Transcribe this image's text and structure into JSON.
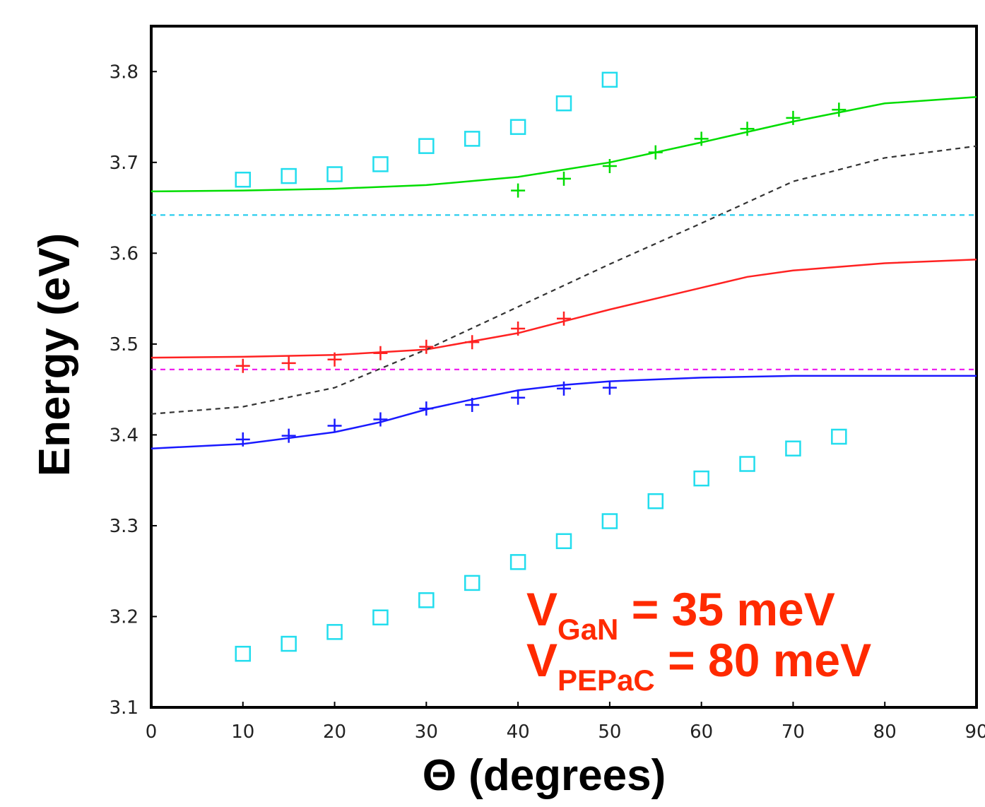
{
  "chart_data": {
    "type": "line",
    "xlabel": "Θ (degrees)",
    "ylabel": "Energy (eV)",
    "xlim": [
      0,
      90
    ],
    "ylim": [
      3.1,
      3.85
    ],
    "x_ticks": [
      "0",
      "10",
      "20",
      "30",
      "40",
      "50",
      "60",
      "70",
      "80",
      "90"
    ],
    "y_ticks": [
      "3.1",
      "3.2",
      "3.3",
      "3.4",
      "3.5",
      "3.6",
      "3.7",
      "3.8"
    ],
    "grid": false,
    "annotations": [
      {
        "main": "V",
        "sub": "GaN",
        "rest": " = 35 meV"
      },
      {
        "main": "V",
        "sub": "PEPaC",
        "rest": " = 80 meV"
      }
    ],
    "series": [
      {
        "color": "#00dd00",
        "style": "solid",
        "points": [
          [
            0,
            3.668
          ],
          [
            10,
            3.669
          ],
          [
            20,
            3.671
          ],
          [
            30,
            3.675
          ],
          [
            40,
            3.684
          ],
          [
            45,
            3.692
          ],
          [
            50,
            3.7
          ],
          [
            60,
            3.722
          ],
          [
            70,
            3.745
          ],
          [
            80,
            3.765
          ],
          [
            90,
            3.772
          ]
        ]
      },
      {
        "color": "#ff2222",
        "style": "solid",
        "points": [
          [
            0,
            3.485
          ],
          [
            10,
            3.486
          ],
          [
            20,
            3.488
          ],
          [
            30,
            3.494
          ],
          [
            40,
            3.512
          ],
          [
            45,
            3.525
          ],
          [
            50,
            3.538
          ],
          [
            60,
            3.562
          ],
          [
            65,
            3.574
          ],
          [
            70,
            3.581
          ],
          [
            80,
            3.589
          ],
          [
            90,
            3.593
          ]
        ]
      },
      {
        "color": "#1a1aff",
        "style": "solid",
        "points": [
          [
            0,
            3.385
          ],
          [
            10,
            3.39
          ],
          [
            20,
            3.403
          ],
          [
            25,
            3.414
          ],
          [
            30,
            3.428
          ],
          [
            35,
            3.439
          ],
          [
            40,
            3.449
          ],
          [
            45,
            3.455
          ],
          [
            50,
            3.459
          ],
          [
            60,
            3.463
          ],
          [
            70,
            3.465
          ],
          [
            90,
            3.465
          ]
        ]
      },
      {
        "color": "#333333",
        "style": "dashed",
        "points": [
          [
            0,
            3.423
          ],
          [
            10,
            3.431
          ],
          [
            20,
            3.452
          ],
          [
            30,
            3.494
          ],
          [
            40,
            3.541
          ],
          [
            50,
            3.588
          ],
          [
            60,
            3.633
          ],
          [
            70,
            3.679
          ],
          [
            80,
            3.705
          ],
          [
            90,
            3.718
          ]
        ]
      },
      {
        "color": "#22ccee",
        "style": "dashed",
        "points": [
          [
            0,
            3.642
          ],
          [
            90,
            3.642
          ]
        ]
      },
      {
        "color": "#ee22ee",
        "style": "dashed",
        "points": [
          [
            0,
            3.472
          ],
          [
            90,
            3.472
          ]
        ]
      },
      {
        "color": "#00dd00",
        "style": "plus",
        "points": [
          [
            40,
            3.669
          ],
          [
            45,
            3.682
          ],
          [
            50,
            3.696
          ],
          [
            55,
            3.711
          ],
          [
            60,
            3.726
          ],
          [
            65,
            3.737
          ],
          [
            70,
            3.749
          ],
          [
            75,
            3.758
          ]
        ]
      },
      {
        "color": "#ff2222",
        "style": "plus",
        "points": [
          [
            10,
            3.476
          ],
          [
            15,
            3.479
          ],
          [
            20,
            3.483
          ],
          [
            25,
            3.49
          ],
          [
            30,
            3.497
          ],
          [
            35,
            3.502
          ],
          [
            40,
            3.517
          ],
          [
            45,
            3.528
          ]
        ]
      },
      {
        "color": "#1a1aff",
        "style": "plus",
        "points": [
          [
            10,
            3.395
          ],
          [
            15,
            3.399
          ],
          [
            20,
            3.41
          ],
          [
            25,
            3.417
          ],
          [
            30,
            3.429
          ],
          [
            35,
            3.433
          ],
          [
            40,
            3.441
          ],
          [
            45,
            3.451
          ],
          [
            50,
            3.452
          ]
        ]
      },
      {
        "color": "#22ddee",
        "style": "square",
        "points": [
          [
            10,
            3.681
          ],
          [
            15,
            3.685
          ],
          [
            20,
            3.687
          ],
          [
            25,
            3.698
          ],
          [
            30,
            3.718
          ],
          [
            35,
            3.726
          ],
          [
            40,
            3.739
          ],
          [
            45,
            3.765
          ],
          [
            50,
            3.791
          ]
        ]
      },
      {
        "color": "#22ddee",
        "style": "square",
        "points": [
          [
            10,
            3.159
          ],
          [
            15,
            3.17
          ],
          [
            20,
            3.183
          ],
          [
            25,
            3.199
          ],
          [
            30,
            3.218
          ],
          [
            35,
            3.237
          ],
          [
            40,
            3.26
          ],
          [
            45,
            3.283
          ],
          [
            50,
            3.305
          ],
          [
            55,
            3.327
          ],
          [
            60,
            3.352
          ],
          [
            65,
            3.368
          ],
          [
            70,
            3.385
          ],
          [
            75,
            3.398
          ]
        ]
      }
    ]
  }
}
